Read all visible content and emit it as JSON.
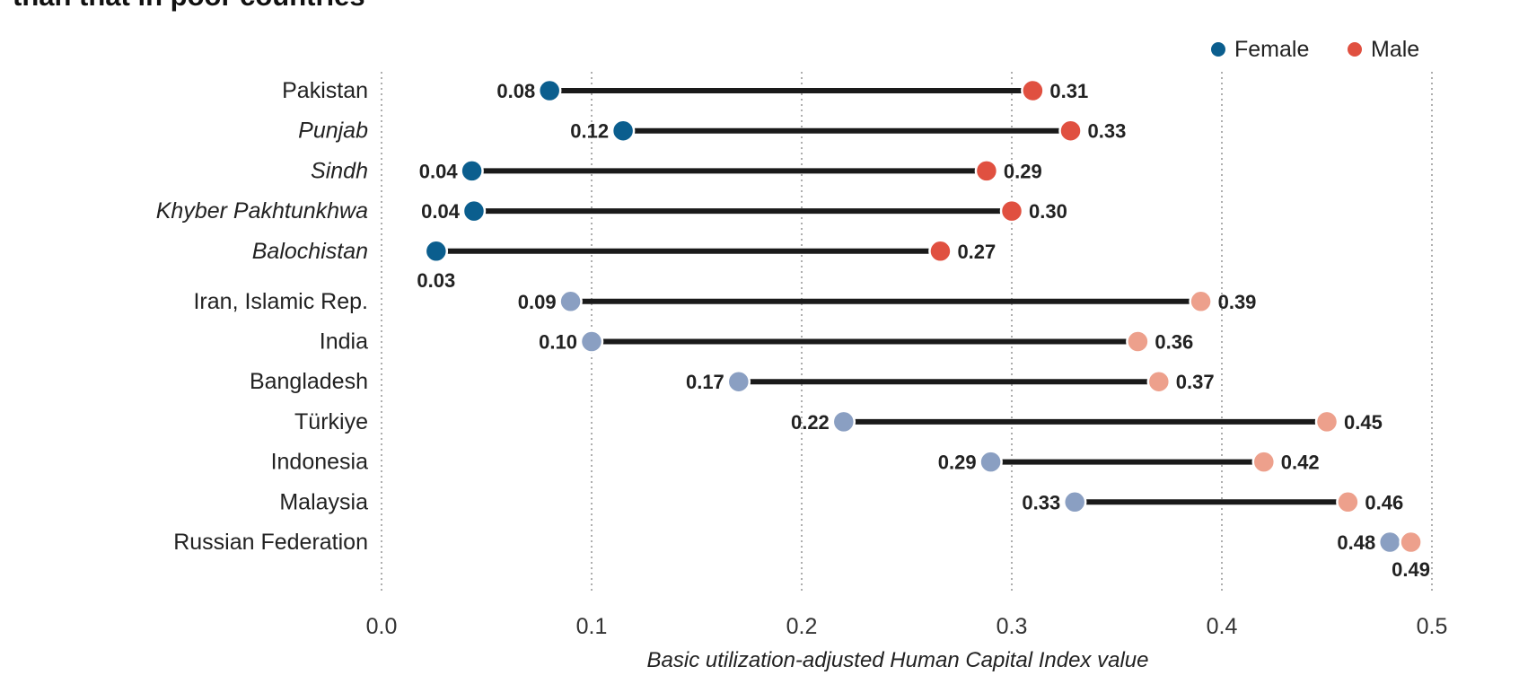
{
  "page": {
    "title_fragment": "than that in poor countries"
  },
  "chart_data": {
    "type": "dumbbell",
    "xlabel": "Basic utilization-adjusted Human Capital Index value",
    "xlim": [
      0.0,
      0.5
    ],
    "xticks": [
      "0.0",
      "0.1",
      "0.2",
      "0.3",
      "0.4",
      "0.5"
    ],
    "grid": "vertical dotted",
    "legend_position": "top-right",
    "legend": [
      {
        "name": "Female",
        "color": "#0b5e8e"
      },
      {
        "name": "Male",
        "color": "#e05040"
      }
    ],
    "colors": {
      "female_pakistan": "#0b5e8e",
      "male_pakistan": "#e05040",
      "female_comparator": "#8a9fc2",
      "male_comparator": "#eda08c",
      "bar": "#1a1a1a"
    },
    "groups": [
      {
        "id": "pakistan",
        "rows": [
          {
            "name": "Pakistan",
            "italic": false,
            "female": 0.08,
            "male": 0.31,
            "female_label": "0.08",
            "male_label": "0.31"
          },
          {
            "name": "Punjab",
            "italic": true,
            "female": 0.115,
            "male": 0.328,
            "female_label": "0.12",
            "male_label": "0.33"
          },
          {
            "name": "Sindh",
            "italic": true,
            "female": 0.043,
            "male": 0.288,
            "female_label": "0.04",
            "male_label": "0.29"
          },
          {
            "name": "Khyber Pakhtunkhwa",
            "italic": true,
            "female": 0.044,
            "male": 0.3,
            "female_label": "0.04",
            "male_label": "0.30"
          },
          {
            "name": "Balochistan",
            "italic": true,
            "female": 0.026,
            "male": 0.266,
            "female_label": "0.03",
            "male_label": "0.27",
            "female_label_below": true
          }
        ]
      },
      {
        "id": "comparators",
        "rows": [
          {
            "name": "Iran, Islamic Rep.",
            "italic": false,
            "female": 0.09,
            "male": 0.39,
            "female_label": "0.09",
            "male_label": "0.39"
          },
          {
            "name": "India",
            "italic": false,
            "female": 0.1,
            "male": 0.36,
            "female_label": "0.10",
            "male_label": "0.36"
          },
          {
            "name": "Bangladesh",
            "italic": false,
            "female": 0.17,
            "male": 0.37,
            "female_label": "0.17",
            "male_label": "0.37"
          },
          {
            "name": "Türkiye",
            "italic": false,
            "female": 0.22,
            "male": 0.45,
            "female_label": "0.22",
            "male_label": "0.45"
          },
          {
            "name": "Indonesia",
            "italic": false,
            "female": 0.29,
            "male": 0.42,
            "female_label": "0.29",
            "male_label": "0.42"
          },
          {
            "name": "Malaysia",
            "italic": false,
            "female": 0.33,
            "male": 0.46,
            "female_label": "0.33",
            "male_label": "0.46"
          },
          {
            "name": "Russian Federation",
            "italic": false,
            "female": 0.48,
            "male": 0.49,
            "female_label": "0.48",
            "male_label": "0.49",
            "male_label_below": true
          }
        ]
      }
    ]
  }
}
